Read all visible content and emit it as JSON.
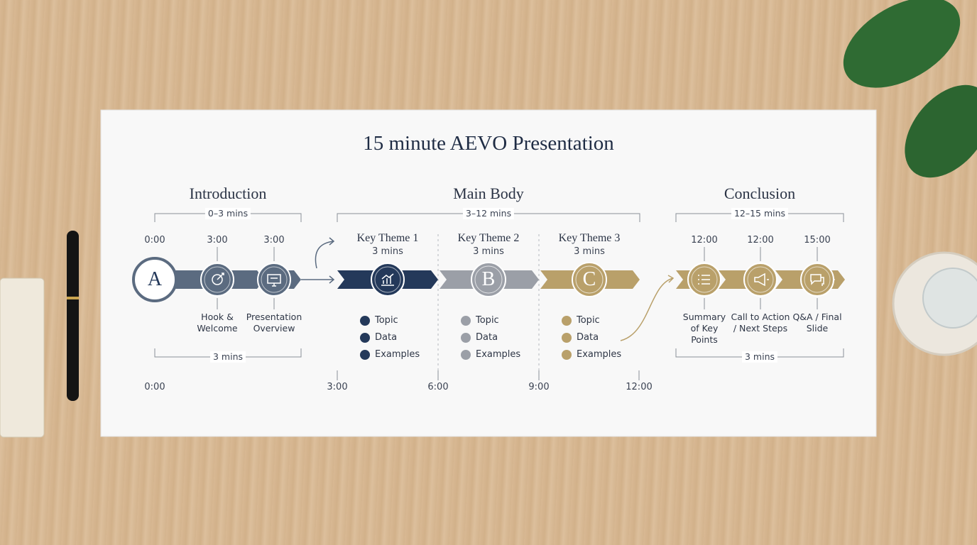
{
  "title": "15 minute AEVO Presentation",
  "introduction": {
    "heading": "Introduction",
    "range": "0–3 mins",
    "duration": "3 mins",
    "badge": "A",
    "start_time": "0:00",
    "steps": [
      {
        "time": "3:00",
        "label": "Hook & Welcome"
      },
      {
        "time": "3:00",
        "label": "Presentation Overview"
      }
    ]
  },
  "main_body": {
    "heading": "Main Body",
    "range": "3–12 mins",
    "themes": [
      {
        "title": "Key Theme 1",
        "duration": "3 mins",
        "points": [
          "Topic",
          "Data",
          "Examples"
        ]
      },
      {
        "title": "Key Theme 2",
        "duration": "3 mins",
        "badge": "B",
        "points": [
          "Topic",
          "Data",
          "Examples"
        ]
      },
      {
        "title": "Key Theme 3",
        "duration": "3 mins",
        "badge": "C",
        "points": [
          "Topic",
          "Data",
          "Examples"
        ]
      }
    ]
  },
  "conclusion": {
    "heading": "Conclusion",
    "range": "12–15 mins",
    "duration": "3 mins",
    "steps": [
      {
        "time": "12:00",
        "label": "Summary of Key Points"
      },
      {
        "time": "12:00",
        "label": "Call to Action / Next Steps"
      },
      {
        "time": "15:00",
        "label": "Q&A / Final Slide"
      }
    ]
  },
  "timeline": [
    "0:00",
    "3:00",
    "6:00",
    "9:00",
    "12:00"
  ]
}
